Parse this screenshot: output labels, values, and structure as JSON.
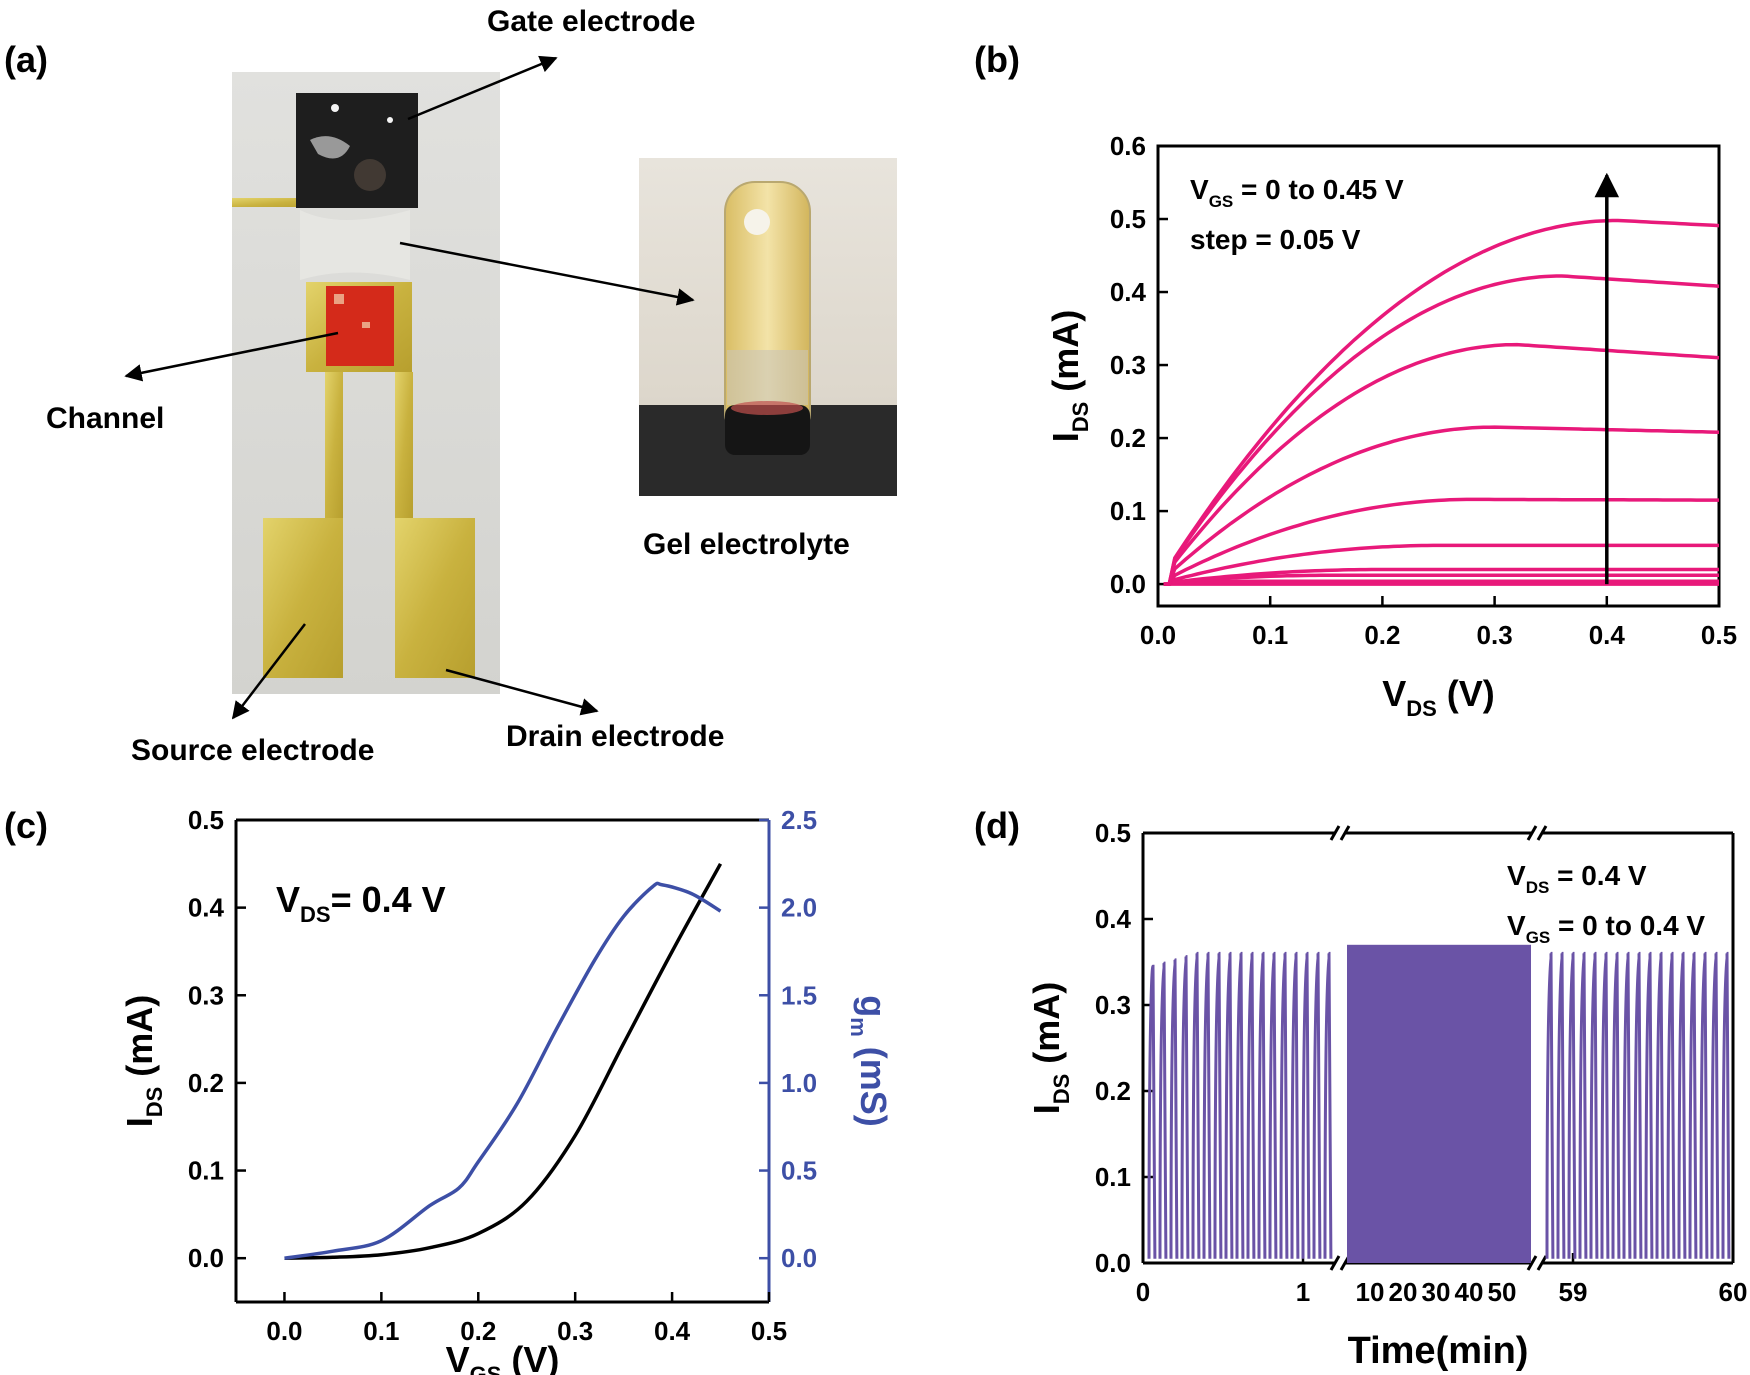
{
  "panels": {
    "a": {
      "label": "(a)"
    },
    "b": {
      "label": "(b)"
    },
    "c": {
      "label": "(c)"
    },
    "d": {
      "label": "(d)"
    }
  },
  "photo": {
    "device_labels": {
      "gate": "Gate electrode",
      "channel": "Channel",
      "source": "Source electrode",
      "drain": "Drain electrode"
    },
    "gel_label": "Gel electrolyte",
    "colors": {
      "gold": "#cdb84a",
      "channel_red": "#d42a1a",
      "gate_black": "#1e1e1e",
      "gel": "#e8cf83",
      "background": "#dcdcd8"
    }
  },
  "chart_data": [
    {
      "panel": "b",
      "type": "line",
      "annotation_lines": [
        "V_GS = 0 to 0.45 V",
        "step = 0.05 V"
      ],
      "xlabel": {
        "main": "V",
        "sub": "DS",
        "unit": " (V)"
      },
      "ylabel": {
        "main": "I",
        "sub": "DS",
        "unit": " (mA)"
      },
      "xlim": [
        0,
        0.5
      ],
      "ylim": [
        -0.03,
        0.6
      ],
      "xticks": [
        "0.0",
        "0.1",
        "0.2",
        "0.3",
        "0.4",
        "0.5"
      ],
      "yticks": [
        "0.0",
        "0.1",
        "0.2",
        "0.3",
        "0.4",
        "0.5",
        "0.6"
      ],
      "color": "#e8197a",
      "arrow": {
        "x": 0.4,
        "y_from": 0.0,
        "y_to": 0.56
      },
      "series_params": [
        {
          "vgs": 0.0,
          "sat": 0.0,
          "vsat": 0.1
        },
        {
          "vgs": 0.05,
          "sat": 0.004,
          "vsat": 0.1
        },
        {
          "vgs": 0.1,
          "sat": 0.012,
          "vsat": 0.15
        },
        {
          "vgs": 0.15,
          "sat": 0.02,
          "vsat": 0.2
        },
        {
          "vgs": 0.2,
          "sat": 0.053,
          "vsat": 0.25
        },
        {
          "vgs": 0.25,
          "sat": 0.116,
          "vsat": 0.28
        },
        {
          "vgs": 0.3,
          "sat": 0.215,
          "vsat": 0.3
        },
        {
          "vgs": 0.35,
          "sat": 0.328,
          "vsat": 0.32
        },
        {
          "vgs": 0.4,
          "sat": 0.422,
          "vsat": 0.36
        },
        {
          "vgs": 0.45,
          "sat": 0.498,
          "vsat": 0.41
        }
      ],
      "series_end_values": [
        0.0,
        0.004,
        0.012,
        0.02,
        0.053,
        0.115,
        0.208,
        0.31,
        0.408,
        0.491
      ]
    },
    {
      "panel": "c",
      "type": "line",
      "annotation": {
        "main": "V",
        "sub": "DS",
        "rest": "= 0.4 V"
      },
      "xlabel": {
        "main": "V",
        "sub": "GS",
        "unit": " (V)"
      },
      "ylabel_left": {
        "main": "I",
        "sub": "DS",
        "unit": " (mA)"
      },
      "ylabel_right": {
        "main": "g",
        "sub": "m",
        "unit": " (mS)"
      },
      "xlim": [
        -0.05,
        0.5
      ],
      "ylim_left": [
        -0.05,
        0.5
      ],
      "ylim_right": [
        -0.25,
        2.5
      ],
      "xticks": [
        "0.0",
        "0.1",
        "0.2",
        "0.3",
        "0.4",
        "0.5"
      ],
      "yticks_left": [
        "0.0",
        "0.1",
        "0.2",
        "0.3",
        "0.4",
        "0.5"
      ],
      "yticks_right": [
        "0.0",
        "0.5",
        "1.0",
        "1.5",
        "2.0",
        "2.5"
      ],
      "ids": {
        "color": "#000000",
        "x": [
          0,
          0.05,
          0.1,
          0.15,
          0.2,
          0.25,
          0.3,
          0.35,
          0.4,
          0.45
        ],
        "y": [
          0.0,
          0.001,
          0.004,
          0.012,
          0.028,
          0.065,
          0.14,
          0.245,
          0.35,
          0.45
        ]
      },
      "gm": {
        "color": "#3d4fa6",
        "x": [
          0,
          0.05,
          0.1,
          0.15,
          0.18,
          0.2,
          0.24,
          0.28,
          0.32,
          0.35,
          0.38,
          0.39,
          0.42,
          0.45
        ],
        "y": [
          0.0,
          0.04,
          0.1,
          0.3,
          0.4,
          0.55,
          0.88,
          1.3,
          1.7,
          1.95,
          2.12,
          2.13,
          2.08,
          1.98
        ]
      }
    },
    {
      "panel": "d",
      "type": "line",
      "annotation_lines": [
        {
          "main": "V",
          "sub": "DS",
          "rest": " = 0.4 V"
        },
        {
          "main": "V",
          "sub": "GS",
          "rest": " = 0 to 0.4 V"
        }
      ],
      "xlabel": "Time(min)",
      "ylabel": {
        "main": "I",
        "sub": "DS",
        "unit": " (mA)"
      },
      "ylim": [
        0,
        0.5
      ],
      "yticks": [
        "0.0",
        "0.1",
        "0.2",
        "0.3",
        "0.4",
        "0.5"
      ],
      "xticks_segment1": [
        "0",
        "1"
      ],
      "xticks_segment2": [
        "10",
        "20",
        "30",
        "40",
        "50"
      ],
      "xticks_segment3": [
        "59",
        "60"
      ],
      "color": "#6a53a6",
      "pulse_peak": 0.36,
      "pulse_peak_start": 0.345,
      "middle_block_peak": 0.37,
      "pulses_per_outer_segment": 17
    }
  ]
}
